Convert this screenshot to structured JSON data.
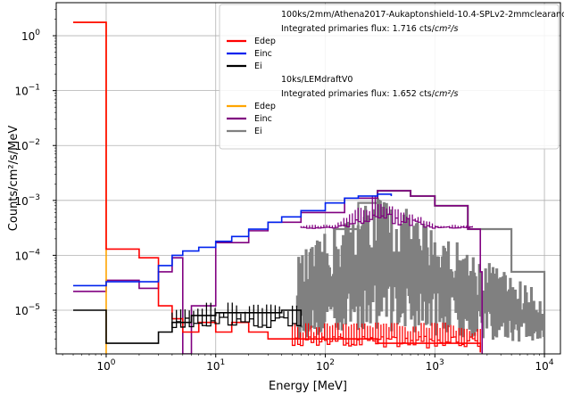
{
  "chart_data": {
    "type": "line",
    "xlabel": "Energy [MeV]",
    "ylabel": "Counts/cm²/s/MeV",
    "x_scale": "log",
    "y_scale": "log",
    "xlim": [
      0.35,
      14000
    ],
    "ylim": [
      1.6e-06,
      4
    ],
    "grid": true,
    "legend_position": "top-right",
    "x_ticks": [
      {
        "value": 1,
        "label": "10",
        "exp": "0"
      },
      {
        "value": 10,
        "label": "10",
        "exp": "1"
      },
      {
        "value": 100,
        "label": "10",
        "exp": "2"
      },
      {
        "value": 1000,
        "label": "10",
        "exp": "3"
      },
      {
        "value": 10000,
        "label": "10",
        "exp": "4"
      }
    ],
    "y_ticks": [
      {
        "value": 1e-05,
        "label": "10",
        "exp": "−5"
      },
      {
        "value": 0.0001,
        "label": "10",
        "exp": "−4"
      },
      {
        "value": 0.001,
        "label": "10",
        "exp": "−3"
      },
      {
        "value": 0.01,
        "label": "10",
        "exp": "−2"
      },
      {
        "value": 0.1,
        "label": "10",
        "exp": "−1"
      },
      {
        "value": 1,
        "label": "10",
        "exp": "0"
      }
    ],
    "legend_groups": [
      {
        "title": "100ks/2mm/Athena2017-Aukaptonshield-10.4-SPLv2-2mmclearance",
        "flux_prefix": "Integrated primaries flux: 1.716 cts/",
        "flux_unit": "cm²/s",
        "series": [
          "Edep",
          "Einc",
          "Ei"
        ]
      },
      {
        "title": "10ks/LEMdraftV0",
        "flux_prefix": "Integrated primaries flux: 1.652 cts/",
        "flux_unit": "cm²/s",
        "series": [
          "Edep",
          "Einc",
          "Ei"
        ]
      }
    ],
    "series": [
      {
        "name": "Edep",
        "group": 0,
        "color": "#ff0000",
        "width": 1.6,
        "noise": {
          "from": 50,
          "to": 2600,
          "low": 1.7e-06,
          "high": 6e-06,
          "bins": 70
        },
        "points": [
          [
            0.5,
            1.75
          ],
          [
            1,
            0.00013
          ],
          [
            2,
            9e-05
          ],
          [
            3,
            1.2e-05
          ],
          [
            4,
            7e-06
          ],
          [
            5,
            4e-06
          ],
          [
            7,
            6e-06
          ],
          [
            10,
            4e-06
          ],
          [
            14,
            6e-06
          ],
          [
            20,
            4e-06
          ],
          [
            30,
            3e-06
          ],
          [
            50,
            3e-06
          ],
          [
            80,
            3e-06
          ],
          [
            150,
            3e-06
          ],
          [
            300,
            2.5e-06
          ],
          [
            1000,
            2.5e-06
          ],
          [
            2600,
            1.7e-06
          ]
        ]
      },
      {
        "name": "Einc",
        "group": 0,
        "color": "#0022ee",
        "width": 1.6,
        "points": [
          [
            0.5,
            2.8e-05
          ],
          [
            1,
            3.3e-05
          ],
          [
            2,
            3.3e-05
          ],
          [
            3,
            6.5e-05
          ],
          [
            4,
            0.0001
          ],
          [
            5,
            0.00012
          ],
          [
            7,
            0.00014
          ],
          [
            10,
            0.00018
          ],
          [
            14,
            0.00022
          ],
          [
            20,
            0.0003
          ],
          [
            30,
            0.0004
          ],
          [
            40,
            0.0005
          ],
          [
            60,
            0.00065
          ],
          [
            100,
            0.0009
          ],
          [
            150,
            0.0011
          ],
          [
            200,
            0.0012
          ],
          [
            300,
            0.0013
          ],
          [
            400,
            0.0012
          ]
        ]
      },
      {
        "name": "Ei",
        "group": 0,
        "color": "#000000",
        "width": 1.6,
        "noise": {
          "from": 4,
          "to": 60,
          "low": 4e-06,
          "high": 1.4e-05,
          "bins": 30
        },
        "points": [
          [
            0.5,
            1e-05
          ],
          [
            1,
            2.5e-06
          ],
          [
            2,
            2.5e-06
          ],
          [
            3,
            4e-06
          ],
          [
            4,
            6e-06
          ],
          [
            6,
            8e-06
          ],
          [
            10,
            9e-06
          ],
          [
            20,
            9e-06
          ],
          [
            40,
            1e-05
          ],
          [
            60,
            5e-06
          ]
        ]
      },
      {
        "name": "Edep",
        "group": 1,
        "color": "#ffa500",
        "width": 1.6,
        "points": [
          [
            0.5,
            1.75
          ],
          [
            1,
            3e-05
          ],
          [
            1,
            1.6e-06
          ]
        ]
      },
      {
        "name": "Einc",
        "group": 1,
        "color": "#800080",
        "width": 1.6,
        "noise": {
          "from": 60,
          "to": 2200,
          "low": 0.0003,
          "high": 0.0016,
          "bins": 60
        },
        "points": [
          [
            0.5,
            2.2e-05
          ],
          [
            1,
            3.5e-05
          ],
          [
            2,
            2.5e-05
          ],
          [
            3,
            5e-05
          ],
          [
            4,
            9e-05
          ],
          [
            5,
            1.6e-06
          ],
          [
            6,
            1.2e-05
          ],
          [
            10,
            0.00017
          ],
          [
            20,
            0.00028
          ],
          [
            30,
            0.0004
          ],
          [
            60,
            0.0006
          ],
          [
            150,
            0.0011
          ],
          [
            300,
            0.0015
          ],
          [
            600,
            0.0012
          ],
          [
            1000,
            0.0008
          ],
          [
            2000,
            0.0003
          ],
          [
            2600,
            5e-05
          ],
          [
            2700,
            1.6e-06
          ]
        ]
      },
      {
        "name": "Ei",
        "group": 1,
        "color": "#808080",
        "width": 2.2,
        "noise": {
          "from": 55,
          "to": 10000,
          "low": 1.6e-06,
          "high": 0.0015,
          "bins": 200
        },
        "points": [
          [
            55,
            5e-06
          ],
          [
            80,
            4e-05
          ],
          [
            120,
            0.0003
          ],
          [
            200,
            0.0009
          ],
          [
            300,
            0.0015
          ],
          [
            600,
            0.0012
          ],
          [
            1000,
            0.0008
          ],
          [
            2000,
            0.0003
          ],
          [
            5000,
            5e-05
          ],
          [
            10000,
            1.6e-06
          ]
        ]
      }
    ]
  }
}
